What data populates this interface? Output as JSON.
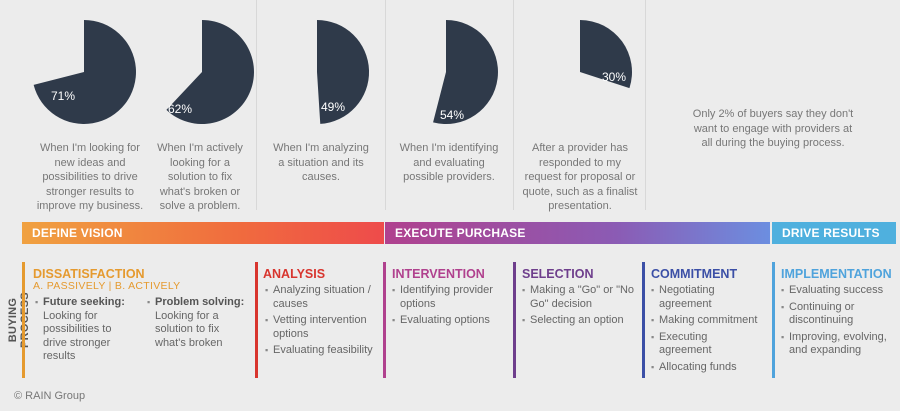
{
  "chart_data": [
    {
      "type": "pie",
      "title": "",
      "values": [
        71
      ],
      "description": "When I'm looking for new ideas and possibilities to drive stronger results to improve my business."
    },
    {
      "type": "pie",
      "title": "",
      "values": [
        62
      ],
      "description": "When I'm actively looking for a solution to fix what's broken or solve a problem."
    },
    {
      "type": "pie",
      "title": "",
      "values": [
        49
      ],
      "description": "When I'm analyzing a situation and its causes."
    },
    {
      "type": "pie",
      "title": "",
      "values": [
        54
      ],
      "description": "When I'm identifying and evaluating possible providers."
    },
    {
      "type": "pie",
      "title": "",
      "values": [
        30
      ],
      "description": "After a provider has responded to my request for proposal or quote, such as a finalist presentation."
    }
  ],
  "pies": [
    {
      "label": "71%",
      "desc": [
        "When I'm looking for",
        "new ideas and",
        "possibilities to drive",
        "stronger results to",
        "improve my business."
      ]
    },
    {
      "label": "62%",
      "desc": [
        "When I'm actively",
        "looking for a",
        "solution to fix",
        "what's broken or",
        "solve a problem."
      ]
    },
    {
      "label": "49%",
      "desc": [
        "When I'm analyzing",
        "a situation and its",
        "causes."
      ]
    },
    {
      "label": "54%",
      "desc": [
        "When I'm identifying",
        "and evaluating",
        "possible providers."
      ]
    },
    {
      "label": "30%",
      "desc": [
        "After a provider has",
        "responded to my",
        "request for proposal or",
        "quote, such as a finalist",
        "presentation."
      ]
    }
  ],
  "note": "Only 2% of buyers say they don't want to engage with providers at all during the buying process.",
  "phases": {
    "define": "DEFINE VISION",
    "execute": "EXECUTE PURCHASE",
    "drive": "DRIVE RESULTS"
  },
  "side_label": "BUYING PROCESS",
  "stages": {
    "dissatisfaction": {
      "title": "DISSATISFACTION",
      "sub": "A. PASSIVELY  |  B. ACTIVELY",
      "a_head": "Future seeking:",
      "a_body": [
        "Looking for",
        "possibilities to",
        "drive stronger",
        "results"
      ],
      "b_head": "Problem solving:",
      "b_body": [
        "Looking for a",
        "solution to fix",
        "what's broken"
      ]
    },
    "analysis": {
      "title": "ANALYSIS",
      "items": [
        "Analyzing situation / causes",
        "Vetting intervention options",
        "Evaluating feasibility"
      ]
    },
    "intervention": {
      "title": "INTERVENTION",
      "items": [
        "Identifying provider options",
        "Evaluating options"
      ]
    },
    "selection": {
      "title": "SELECTION",
      "items": [
        "Making a \"Go\" or \"No Go\" decision",
        "Selecting an option"
      ]
    },
    "commitment": {
      "title": "COMMITMENT",
      "items": [
        "Negotiating agreement",
        "Making commitment",
        "Executing agreement",
        "Allocating funds"
      ]
    },
    "implementation": {
      "title": "IMPLEMENTATION",
      "items": [
        "Evaluating success",
        "Continuing or discontinuing",
        "Improving, evolving, and expanding"
      ]
    }
  },
  "footer": "© RAIN Group",
  "colors": {
    "pie": "#2f3a4a",
    "dissatisfaction": "#e59a2f",
    "analysis": "#d8352e",
    "intervention": "#b0418e",
    "selection": "#6e3e8c",
    "commitment": "#3b4fa6",
    "implementation": "#4fa3dc"
  }
}
